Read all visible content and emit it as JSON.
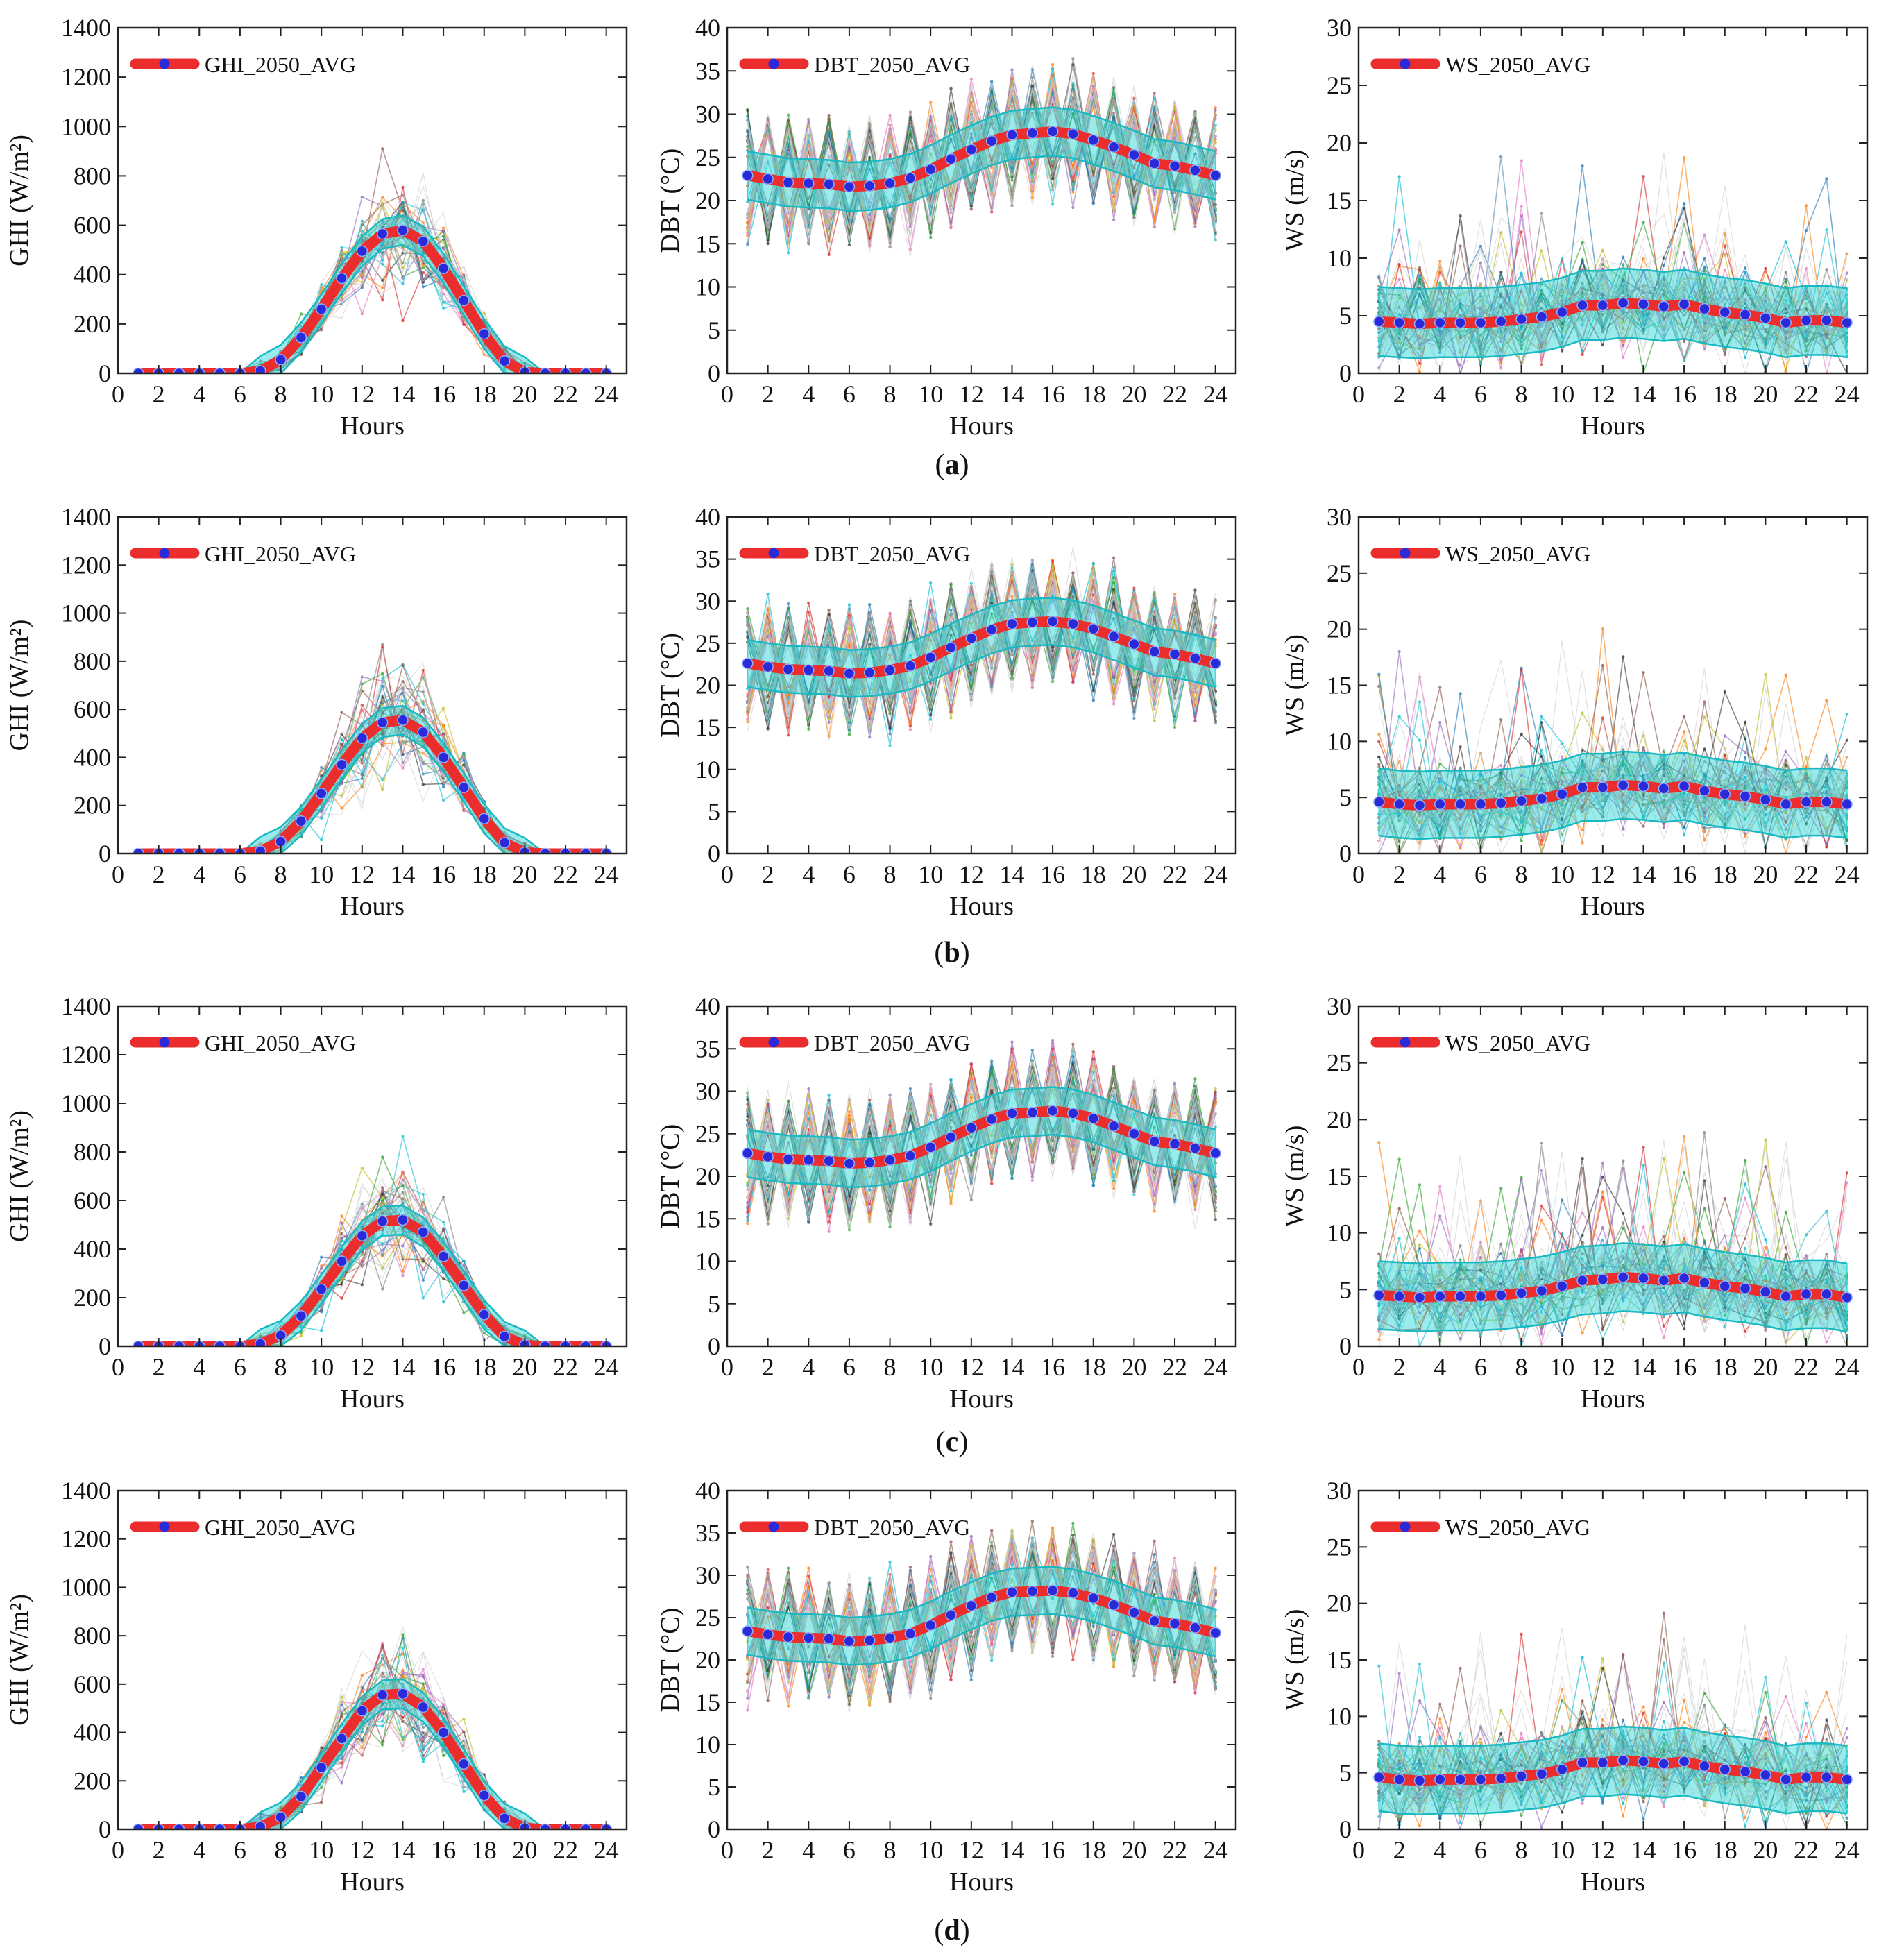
{
  "figure": {
    "row_labels": [
      "a",
      "b",
      "c",
      "d"
    ],
    "x_axis_label": "Hours",
    "legend_labels": {
      "ghi": "GHI_2050_AVG",
      "dbt": "DBT_2050_AVG",
      "ws": "WS_2050_AVG"
    },
    "y_axis_labels": {
      "ghi": "GHI (W/m²)",
      "dbt": "DBT (°C)",
      "ws": "WS (m/s)"
    }
  },
  "colors": {
    "avg_line": "#ec2d2d",
    "avg_marker": "#2a2ad8",
    "band": "#1fd3d3",
    "ensemble": [
      "#2ca02c",
      "#ff7f0e",
      "#1f77b4",
      "#9467bd",
      "#8c564b",
      "#e377c2",
      "#7f7f7f",
      "#bcbd22",
      "#17becf",
      "#d62728",
      "#333333",
      "#00bcd4"
    ]
  },
  "chart_data": [
    {
      "row": "a",
      "variable": "ghi",
      "type": "line",
      "title": "",
      "xlabel": "Hours",
      "ylabel": "GHI (W/m2)",
      "xlim": [
        0,
        25
      ],
      "ylim": [
        0,
        1400
      ],
      "xticks": [
        0,
        2,
        4,
        6,
        8,
        10,
        12,
        14,
        16,
        18,
        20,
        22,
        24
      ],
      "yticks": [
        0,
        200,
        400,
        600,
        800,
        1000,
        1200,
        1400
      ],
      "legend": "top-left",
      "series": [
        {
          "name": "GHI_2050_AVG",
          "x": [
            1,
            2,
            3,
            4,
            5,
            6,
            7,
            8,
            9,
            10,
            11,
            12,
            13,
            14,
            15,
            16,
            17,
            18,
            19,
            20,
            21,
            22,
            23,
            24
          ],
          "values": [
            0,
            0,
            0,
            0,
            0,
            0,
            10,
            55,
            145,
            260,
            385,
            495,
            565,
            580,
            535,
            425,
            295,
            160,
            50,
            5,
            0,
            0,
            0,
            0
          ]
        }
      ],
      "band_halfwidth": 60
    },
    {
      "row": "a",
      "variable": "dbt",
      "type": "line",
      "title": "",
      "xlabel": "Hours",
      "ylabel": "DBT (°C)",
      "xlim": [
        0,
        25
      ],
      "ylim": [
        0,
        40
      ],
      "xticks": [
        0,
        2,
        4,
        6,
        8,
        10,
        12,
        14,
        16,
        18,
        20,
        22,
        24
      ],
      "yticks": [
        0,
        5,
        10,
        15,
        20,
        25,
        30,
        35,
        40
      ],
      "legend": "top-left",
      "series": [
        {
          "name": "DBT_2050_AVG",
          "x": [
            1,
            2,
            3,
            4,
            5,
            6,
            7,
            8,
            9,
            10,
            11,
            12,
            13,
            14,
            15,
            16,
            17,
            18,
            19,
            20,
            21,
            22,
            23,
            24
          ],
          "values": [
            22.9,
            22.5,
            22.1,
            22.0,
            21.9,
            21.6,
            21.7,
            22.0,
            22.6,
            23.6,
            24.8,
            25.9,
            26.9,
            27.6,
            27.8,
            28.0,
            27.7,
            27.0,
            26.2,
            25.3,
            24.3,
            24.0,
            23.5,
            22.9
          ]
        }
      ],
      "band_halfwidth": 2.8
    },
    {
      "row": "a",
      "variable": "ws",
      "type": "line",
      "title": "",
      "xlabel": "Hours",
      "ylabel": "WS (m/s)",
      "xlim": [
        0,
        25
      ],
      "ylim": [
        0,
        30
      ],
      "xticks": [
        0,
        2,
        4,
        6,
        8,
        10,
        12,
        14,
        16,
        18,
        20,
        22,
        24
      ],
      "yticks": [
        0,
        5,
        10,
        15,
        20,
        25,
        30
      ],
      "legend": "top-left",
      "series": [
        {
          "name": "WS_2050_AVG",
          "x": [
            1,
            2,
            3,
            4,
            5,
            6,
            7,
            8,
            9,
            10,
            11,
            12,
            13,
            14,
            15,
            16,
            17,
            18,
            19,
            20,
            21,
            22,
            23,
            24
          ],
          "values": [
            4.5,
            4.4,
            4.3,
            4.4,
            4.4,
            4.4,
            4.5,
            4.7,
            4.9,
            5.3,
            5.9,
            5.9,
            6.1,
            6.0,
            5.8,
            6.0,
            5.6,
            5.3,
            5.1,
            4.8,
            4.4,
            4.6,
            4.6,
            4.4
          ]
        }
      ],
      "band_halfwidth": 3.0
    },
    {
      "row": "b",
      "variable": "ghi",
      "type": "line",
      "title": "",
      "xlabel": "Hours",
      "ylabel": "GHI (W/m2)",
      "xlim": [
        0,
        25
      ],
      "ylim": [
        0,
        1400
      ],
      "xticks": [
        0,
        2,
        4,
        6,
        8,
        10,
        12,
        14,
        16,
        18,
        20,
        22,
        24
      ],
      "yticks": [
        0,
        200,
        400,
        600,
        800,
        1000,
        1200,
        1400
      ],
      "legend": "top-left",
      "series": [
        {
          "name": "GHI_2050_AVG",
          "x": [
            1,
            2,
            3,
            4,
            5,
            6,
            7,
            8,
            9,
            10,
            11,
            12,
            13,
            14,
            15,
            16,
            17,
            18,
            19,
            20,
            21,
            22,
            23,
            24
          ],
          "values": [
            0,
            0,
            0,
            0,
            0,
            0,
            10,
            50,
            135,
            250,
            370,
            480,
            545,
            555,
            505,
            400,
            275,
            145,
            45,
            5,
            0,
            0,
            0,
            0
          ]
        }
      ],
      "band_halfwidth": 60
    },
    {
      "row": "b",
      "variable": "dbt",
      "type": "line",
      "title": "",
      "xlabel": "Hours",
      "ylabel": "DBT (°C)",
      "xlim": [
        0,
        25
      ],
      "ylim": [
        0,
        40
      ],
      "xticks": [
        0,
        2,
        4,
        6,
        8,
        10,
        12,
        14,
        16,
        18,
        20,
        22,
        24
      ],
      "yticks": [
        0,
        5,
        10,
        15,
        20,
        25,
        30,
        35,
        40
      ],
      "legend": "top-left",
      "series": [
        {
          "name": "DBT_2050_AVG",
          "x": [
            1,
            2,
            3,
            4,
            5,
            6,
            7,
            8,
            9,
            10,
            11,
            12,
            13,
            14,
            15,
            16,
            17,
            18,
            19,
            20,
            21,
            22,
            23,
            24
          ],
          "values": [
            22.6,
            22.2,
            21.9,
            21.8,
            21.7,
            21.4,
            21.5,
            21.8,
            22.3,
            23.3,
            24.5,
            25.6,
            26.6,
            27.3,
            27.5,
            27.6,
            27.3,
            26.7,
            25.8,
            24.9,
            24.0,
            23.7,
            23.2,
            22.6
          ]
        }
      ],
      "band_halfwidth": 2.8
    },
    {
      "row": "b",
      "variable": "ws",
      "type": "line",
      "title": "",
      "xlabel": "Hours",
      "ylabel": "WS (m/s)",
      "xlim": [
        0,
        25
      ],
      "ylim": [
        0,
        30
      ],
      "xticks": [
        0,
        2,
        4,
        6,
        8,
        10,
        12,
        14,
        16,
        18,
        20,
        22,
        24
      ],
      "yticks": [
        0,
        5,
        10,
        15,
        20,
        25,
        30
      ],
      "legend": "top-left",
      "series": [
        {
          "name": "WS_2050_AVG",
          "x": [
            1,
            2,
            3,
            4,
            5,
            6,
            7,
            8,
            9,
            10,
            11,
            12,
            13,
            14,
            15,
            16,
            17,
            18,
            19,
            20,
            21,
            22,
            23,
            24
          ],
          "values": [
            4.6,
            4.4,
            4.3,
            4.4,
            4.4,
            4.4,
            4.5,
            4.7,
            4.9,
            5.3,
            5.9,
            5.9,
            6.1,
            6.0,
            5.8,
            6.0,
            5.6,
            5.3,
            5.1,
            4.8,
            4.4,
            4.6,
            4.6,
            4.4
          ]
        }
      ],
      "band_halfwidth": 3.0
    },
    {
      "row": "c",
      "variable": "ghi",
      "type": "line",
      "title": "",
      "xlabel": "Hours",
      "ylabel": "GHI (W/m2)",
      "xlim": [
        0,
        25
      ],
      "ylim": [
        0,
        1400
      ],
      "xticks": [
        0,
        2,
        4,
        6,
        8,
        10,
        12,
        14,
        16,
        18,
        20,
        22,
        24
      ],
      "yticks": [
        0,
        200,
        400,
        600,
        800,
        1000,
        1200,
        1400
      ],
      "legend": "top-left",
      "series": [
        {
          "name": "GHI_2050_AVG",
          "x": [
            1,
            2,
            3,
            4,
            5,
            6,
            7,
            8,
            9,
            10,
            11,
            12,
            13,
            14,
            15,
            16,
            17,
            18,
            19,
            20,
            21,
            22,
            23,
            24
          ],
          "values": [
            0,
            0,
            0,
            0,
            0,
            0,
            10,
            45,
            125,
            235,
            350,
            455,
            515,
            520,
            470,
            370,
            250,
            130,
            40,
            5,
            0,
            0,
            0,
            0
          ]
        }
      ],
      "band_halfwidth": 60
    },
    {
      "row": "c",
      "variable": "dbt",
      "type": "line",
      "title": "",
      "xlabel": "Hours",
      "ylabel": "DBT (°C)",
      "xlim": [
        0,
        25
      ],
      "ylim": [
        0,
        40
      ],
      "xticks": [
        0,
        2,
        4,
        6,
        8,
        10,
        12,
        14,
        16,
        18,
        20,
        22,
        24
      ],
      "yticks": [
        0,
        5,
        10,
        15,
        20,
        25,
        30,
        35,
        40
      ],
      "legend": "top-left",
      "series": [
        {
          "name": "DBT_2050_AVG",
          "x": [
            1,
            2,
            3,
            4,
            5,
            6,
            7,
            8,
            9,
            10,
            11,
            12,
            13,
            14,
            15,
            16,
            17,
            18,
            19,
            20,
            21,
            22,
            23,
            24
          ],
          "values": [
            22.7,
            22.3,
            22.0,
            21.9,
            21.8,
            21.5,
            21.6,
            21.9,
            22.4,
            23.4,
            24.6,
            25.7,
            26.7,
            27.4,
            27.5,
            27.7,
            27.4,
            26.8,
            25.9,
            25.0,
            24.1,
            23.8,
            23.3,
            22.7
          ]
        }
      ],
      "band_halfwidth": 2.8
    },
    {
      "row": "c",
      "variable": "ws",
      "type": "line",
      "title": "",
      "xlabel": "Hours",
      "ylabel": "WS (m/s)",
      "xlim": [
        0,
        25
      ],
      "ylim": [
        0,
        30
      ],
      "xticks": [
        0,
        2,
        4,
        6,
        8,
        10,
        12,
        14,
        16,
        18,
        20,
        22,
        24
      ],
      "yticks": [
        0,
        5,
        10,
        15,
        20,
        25,
        30
      ],
      "legend": "top-left",
      "series": [
        {
          "name": "WS_2050_AVG",
          "x": [
            1,
            2,
            3,
            4,
            5,
            6,
            7,
            8,
            9,
            10,
            11,
            12,
            13,
            14,
            15,
            16,
            17,
            18,
            19,
            20,
            21,
            22,
            23,
            24
          ],
          "values": [
            4.5,
            4.4,
            4.3,
            4.4,
            4.4,
            4.4,
            4.5,
            4.7,
            4.9,
            5.3,
            5.8,
            5.9,
            6.1,
            6.0,
            5.8,
            6.0,
            5.6,
            5.3,
            5.1,
            4.8,
            4.4,
            4.6,
            4.6,
            4.3
          ]
        }
      ],
      "band_halfwidth": 3.0
    },
    {
      "row": "d",
      "variable": "ghi",
      "type": "line",
      "title": "",
      "xlabel": "Hours",
      "ylabel": "GHI (W/m2)",
      "xlim": [
        0,
        25
      ],
      "ylim": [
        0,
        1400
      ],
      "xticks": [
        0,
        2,
        4,
        6,
        8,
        10,
        12,
        14,
        16,
        18,
        20,
        22,
        24
      ],
      "yticks": [
        0,
        200,
        400,
        600,
        800,
        1000,
        1200,
        1400
      ],
      "legend": "top-left",
      "series": [
        {
          "name": "GHI_2050_AVG",
          "x": [
            1,
            2,
            3,
            4,
            5,
            6,
            7,
            8,
            9,
            10,
            11,
            12,
            13,
            14,
            15,
            16,
            17,
            18,
            19,
            20,
            21,
            22,
            23,
            24
          ],
          "values": [
            0,
            0,
            0,
            0,
            0,
            0,
            10,
            50,
            135,
            255,
            375,
            490,
            555,
            560,
            505,
            400,
            270,
            140,
            45,
            5,
            0,
            0,
            0,
            0
          ]
        }
      ],
      "band_halfwidth": 60
    },
    {
      "row": "d",
      "variable": "dbt",
      "type": "line",
      "title": "",
      "xlabel": "Hours",
      "ylabel": "DBT (°C)",
      "xlim": [
        0,
        25
      ],
      "ylim": [
        0,
        40
      ],
      "xticks": [
        0,
        2,
        4,
        6,
        8,
        10,
        12,
        14,
        16,
        18,
        20,
        22,
        24
      ],
      "yticks": [
        0,
        5,
        10,
        15,
        20,
        25,
        30,
        35,
        40
      ],
      "legend": "top-left",
      "series": [
        {
          "name": "DBT_2050_AVG",
          "x": [
            1,
            2,
            3,
            4,
            5,
            6,
            7,
            8,
            9,
            10,
            11,
            12,
            13,
            14,
            15,
            16,
            17,
            18,
            19,
            20,
            21,
            22,
            23,
            24
          ],
          "values": [
            23.4,
            23.0,
            22.7,
            22.6,
            22.5,
            22.2,
            22.3,
            22.6,
            23.1,
            24.1,
            25.3,
            26.4,
            27.4,
            28.0,
            28.1,
            28.2,
            27.9,
            27.3,
            26.5,
            25.6,
            24.6,
            24.3,
            23.8,
            23.2
          ]
        }
      ],
      "band_halfwidth": 2.8
    },
    {
      "row": "d",
      "variable": "ws",
      "type": "line",
      "title": "",
      "xlabel": "Hours",
      "ylabel": "WS (m/s)",
      "xlim": [
        0,
        25
      ],
      "ylim": [
        0,
        30
      ],
      "xticks": [
        0,
        2,
        4,
        6,
        8,
        10,
        12,
        14,
        16,
        18,
        20,
        22,
        24
      ],
      "yticks": [
        0,
        5,
        10,
        15,
        20,
        25,
        30
      ],
      "legend": "top-left",
      "series": [
        {
          "name": "WS_2050_AVG",
          "x": [
            1,
            2,
            3,
            4,
            5,
            6,
            7,
            8,
            9,
            10,
            11,
            12,
            13,
            14,
            15,
            16,
            17,
            18,
            19,
            20,
            21,
            22,
            23,
            24
          ],
          "values": [
            4.6,
            4.4,
            4.3,
            4.4,
            4.4,
            4.4,
            4.5,
            4.7,
            4.9,
            5.3,
            5.9,
            5.9,
            6.1,
            6.0,
            5.8,
            6.0,
            5.6,
            5.3,
            5.1,
            4.8,
            4.4,
            4.6,
            4.6,
            4.4
          ]
        }
      ],
      "band_halfwidth": 3.0
    }
  ]
}
